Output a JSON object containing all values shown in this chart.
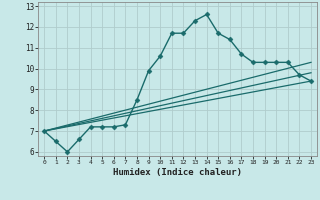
{
  "xlabel": "Humidex (Indice chaleur)",
  "ylabel": "",
  "bg_color": "#c8e8e8",
  "grid_color": "#b0cccc",
  "line_color": "#1a6b6b",
  "xlim": [
    -0.5,
    23.5
  ],
  "ylim": [
    5.8,
    13.2
  ],
  "xticks": [
    0,
    1,
    2,
    3,
    4,
    5,
    6,
    7,
    8,
    9,
    10,
    11,
    12,
    13,
    14,
    15,
    16,
    17,
    18,
    19,
    20,
    21,
    22,
    23
  ],
  "yticks": [
    6,
    7,
    8,
    9,
    10,
    11,
    12,
    13
  ],
  "lines": [
    {
      "x": [
        0,
        1,
        2,
        3,
        4,
        5,
        6,
        7,
        8,
        9,
        10,
        11,
        12,
        13,
        14,
        15,
        16,
        17,
        18,
        19,
        20,
        21,
        22,
        23
      ],
      "y": [
        7.0,
        6.5,
        6.0,
        6.6,
        7.2,
        7.2,
        7.2,
        7.3,
        8.5,
        9.9,
        10.6,
        11.7,
        11.7,
        12.3,
        12.6,
        11.7,
        11.4,
        10.7,
        10.3,
        10.3,
        10.3,
        10.3,
        9.7,
        9.4
      ],
      "marker": "D",
      "linewidth": 1.0,
      "markersize": 2.5,
      "zorder": 3
    },
    {
      "x": [
        0,
        23
      ],
      "y": [
        7.0,
        9.4
      ],
      "marker": null,
      "linewidth": 0.9,
      "markersize": 0,
      "zorder": 2
    },
    {
      "x": [
        0,
        23
      ],
      "y": [
        7.0,
        9.8
      ],
      "marker": null,
      "linewidth": 0.9,
      "markersize": 0,
      "zorder": 2
    },
    {
      "x": [
        0,
        23
      ],
      "y": [
        7.0,
        10.3
      ],
      "marker": null,
      "linewidth": 0.9,
      "markersize": 0,
      "zorder": 2
    }
  ]
}
